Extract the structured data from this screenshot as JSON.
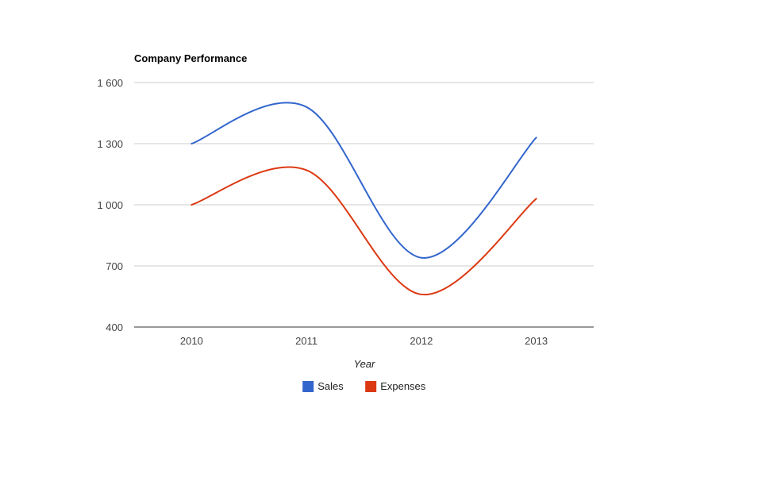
{
  "chart_data": {
    "type": "line",
    "title": "Company Performance",
    "xlabel": "Year",
    "ylabel": "",
    "categories": [
      "2010",
      "2011",
      "2012",
      "2013"
    ],
    "series": [
      {
        "name": "Sales",
        "values": [
          1300,
          1480,
          740,
          1330
        ],
        "color": "#3366cc"
      },
      {
        "name": "Expenses",
        "values": [
          1000,
          1170,
          560,
          1030
        ],
        "color": "#dc3912"
      }
    ],
    "ylim": [
      400,
      1600
    ],
    "yticks": [
      400,
      700,
      1000,
      1300,
      1600
    ],
    "ytick_labels": [
      "400",
      "700",
      "1 000",
      "1 300",
      "1 600"
    ],
    "curve": "smooth",
    "grid": true,
    "legend_position": "bottom"
  }
}
